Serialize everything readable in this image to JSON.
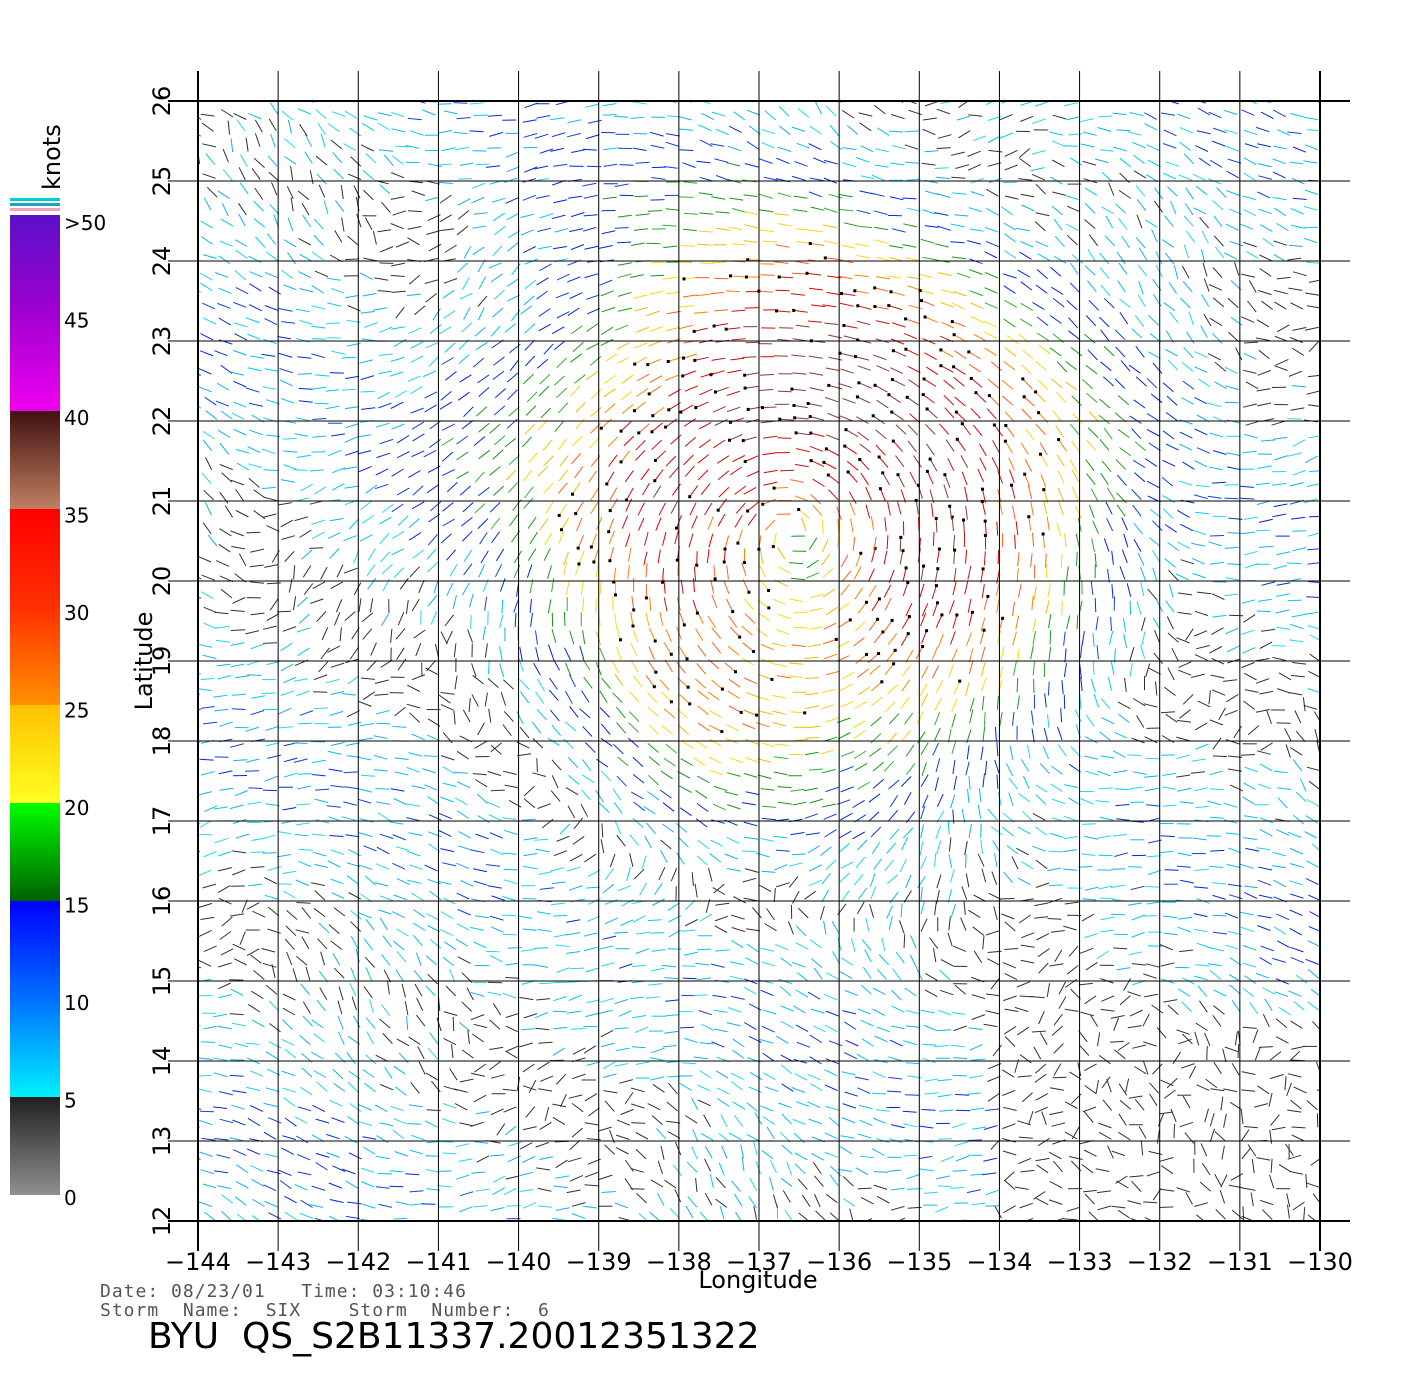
{
  "colorbar": {
    "unit": "knots",
    "labels": [
      ">50",
      "45",
      "40",
      "35",
      "30",
      "25",
      "20",
      "15",
      "10",
      "5",
      "0"
    ],
    "stops": [
      {
        "value": 50,
        "color": "#5a10c8"
      },
      {
        "value": 45,
        "color": "#a000d0"
      },
      {
        "value": 40,
        "color": "#f000f0"
      },
      {
        "value": 40,
        "color": "#401010"
      },
      {
        "value": 35,
        "color": "#c08060"
      },
      {
        "value": 35,
        "color": "#ff0000"
      },
      {
        "value": 30,
        "color": "#ff3000"
      },
      {
        "value": 25,
        "color": "#ff9000"
      },
      {
        "value": 25,
        "color": "#ffc000"
      },
      {
        "value": 20,
        "color": "#ffff20"
      },
      {
        "value": 20,
        "color": "#00ff00"
      },
      {
        "value": 15,
        "color": "#006000"
      },
      {
        "value": 15,
        "color": "#0000ff"
      },
      {
        "value": 10,
        "color": "#0070ff"
      },
      {
        "value": 5,
        "color": "#00f0ff"
      },
      {
        "value": 5,
        "color": "#202020"
      },
      {
        "value": 0,
        "color": "#909090"
      }
    ]
  },
  "map": {
    "lon_range": [
      -144,
      -130
    ],
    "lat_range": [
      12,
      26
    ],
    "lon_ticks": [
      "−144",
      "−143",
      "−142",
      "−141",
      "−140",
      "−139",
      "−138",
      "−137",
      "−136",
      "−135",
      "−134",
      "−133",
      "−132",
      "−131",
      "−130"
    ],
    "lat_ticks": [
      "12",
      "13",
      "14",
      "15",
      "16",
      "17",
      "18",
      "19",
      "20",
      "21",
      "22",
      "23",
      "24",
      "25",
      "26"
    ],
    "xlabel": "Longitude",
    "ylabel": "Latitude",
    "grid": true
  },
  "info": {
    "date_line": "Date: 08/23/01   Time: 03:10:46",
    "storm_line": "Storm  Name:  SIX    Storm  Number:  6",
    "title": "BYU  QS_S2B11337.20012351322"
  }
}
